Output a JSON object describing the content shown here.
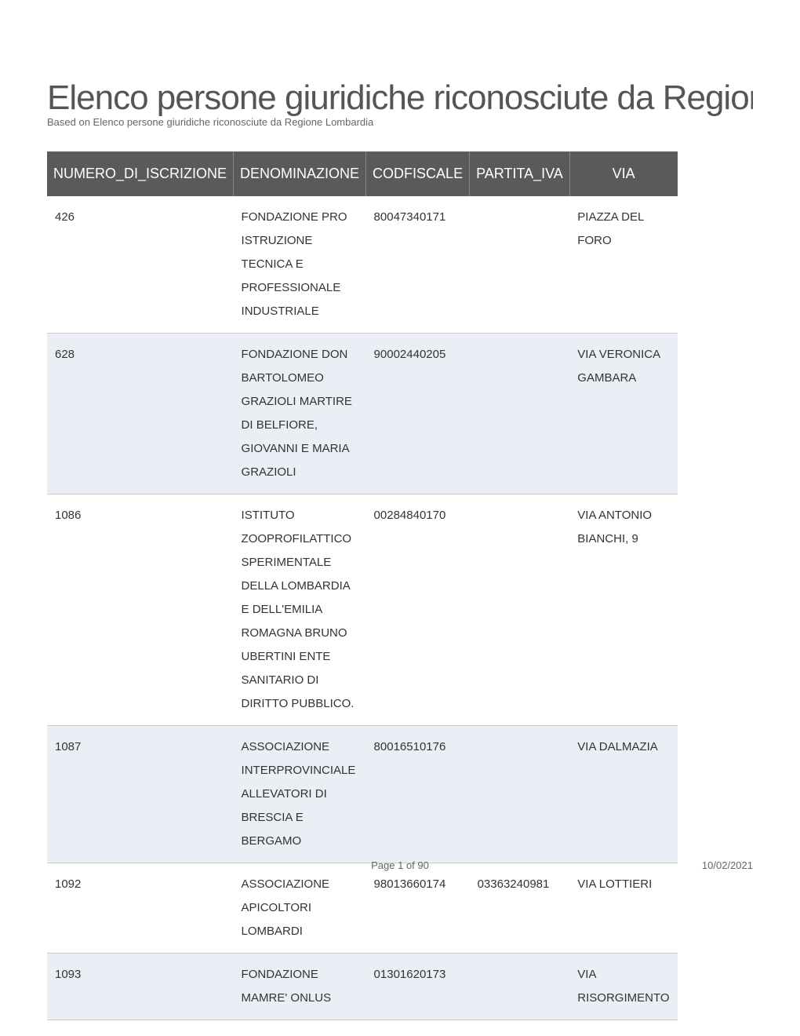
{
  "header": {
    "title": "Elenco persone giuridiche riconosciute da Regione Lombardia",
    "subtitle": "Based on Elenco persone giuridiche riconosciute da Regione Lombardia"
  },
  "table": {
    "columns": [
      {
        "key": "numero",
        "label": "NUMERO_DI_ISCRIZIONE",
        "class": "col-num"
      },
      {
        "key": "denom",
        "label": "DENOMINAZIONE",
        "class": "col-denom"
      },
      {
        "key": "cod",
        "label": "CODFISCALE",
        "class": "col-cod"
      },
      {
        "key": "iva",
        "label": "PARTITA_IVA",
        "class": "col-iva"
      },
      {
        "key": "via",
        "label": "VIA",
        "class": "col-via"
      }
    ],
    "rows": [
      {
        "numero": "426",
        "denom": "FONDAZIONE PRO ISTRUZIONE TECNICA E PROFESSIONALE INDUSTRIALE",
        "cod": "80047340171",
        "iva": "",
        "via": "PIAZZA DEL FORO"
      },
      {
        "numero": "628",
        "denom": "FONDAZIONE DON BARTOLOMEO GRAZIOLI MARTIRE DI BELFIORE, GIOVANNI E MARIA GRAZIOLI",
        "cod": "90002440205",
        "iva": "",
        "via": "VIA VERONICA GAMBARA"
      },
      {
        "numero": "1086",
        "denom": "ISTITUTO ZOOPROFILATTICO SPERIMENTALE DELLA LOMBARDIA E DELL'EMILIA ROMAGNA BRUNO UBERTINI ENTE SANITARIO DI DIRITTO PUBBLICO.",
        "cod": "00284840170",
        "iva": "",
        "via": "VIA ANTONIO BIANCHI, 9"
      },
      {
        "numero": "1087",
        "denom": "ASSOCIAZIONE INTERPROVINCIALE ALLEVATORI DI BRESCIA E BERGAMO",
        "cod": "80016510176",
        "iva": "",
        "via": "VIA DALMAZIA"
      },
      {
        "numero": "1092",
        "denom": "ASSOCIAZIONE APICOLTORI LOMBARDI",
        "cod": "98013660174",
        "iva": "03363240981",
        "via": "VIA LOTTIERI"
      },
      {
        "numero": "1093",
        "denom": "FONDAZIONE MAMRE' ONLUS",
        "cod": "01301620173",
        "iva": "",
        "via": "VIA RISORGIMENTO"
      }
    ],
    "header_bg": "#5a5a5a",
    "header_fg": "#ffffff",
    "row_odd_bg": "#ffffff",
    "row_even_bg": "#eceef5",
    "border_color": "#cccccc"
  },
  "footer": {
    "page": "Page 1 of 90",
    "date": "10/02/2021"
  }
}
